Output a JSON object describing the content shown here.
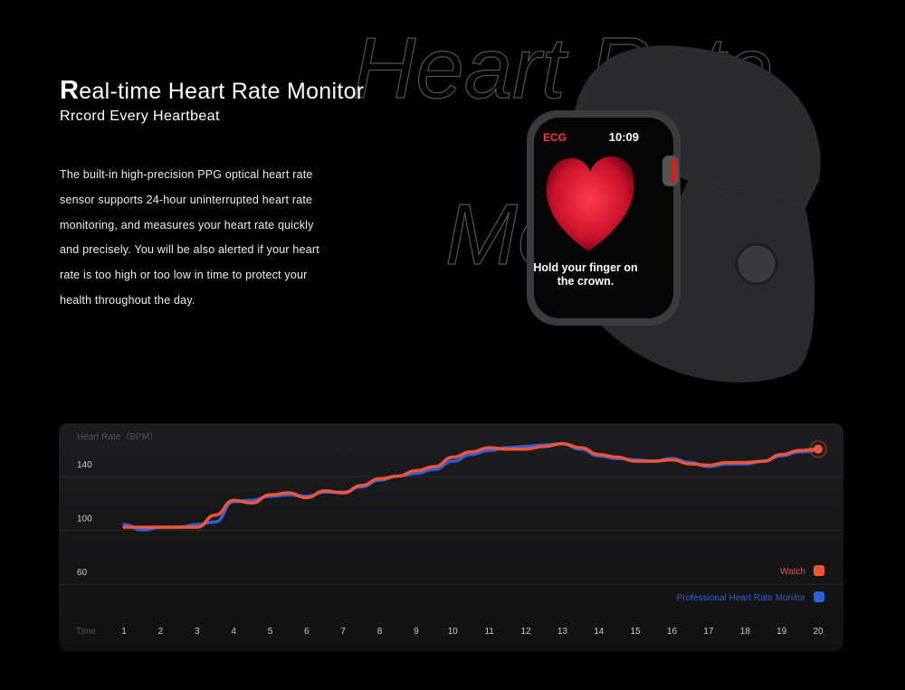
{
  "header": {
    "title": "Real-time Heart Rate Monitor",
    "subtitle": "Rrcord Every Heartbeat",
    "background_title": [
      "Heart Rate",
      "Monitor"
    ],
    "body_lines": [
      "The built-in high-precision PPG optical heart rate",
      "sensor supports 24-hour uninterrupted heart rate",
      "monitoring, and measures your heart rate quickly",
      "and precisely. You will be also alerted if your heart",
      "rate is too high or too low in time to protect your",
      "health throughout the day."
    ]
  },
  "watch": {
    "app": "ECG",
    "time": "10:09",
    "prompt": [
      "Hold your finger on",
      "the crown."
    ]
  },
  "chart_data": {
    "type": "line",
    "ylabel": "Heart Rate（BPM）",
    "xlabel": "Time",
    "x": [
      1,
      1.5,
      2,
      2.5,
      3,
      3.5,
      4,
      4.5,
      5,
      5.5,
      6,
      6.5,
      7,
      7.5,
      8,
      8.5,
      9,
      9.5,
      10,
      10.5,
      11,
      11.5,
      12,
      12.5,
      13,
      13.5,
      14,
      14.5,
      15,
      15.5,
      16,
      16.5,
      17,
      17.5,
      18,
      18.5,
      19,
      19.5,
      20
    ],
    "xlim": [
      1,
      20
    ],
    "xticks": [
      1,
      2,
      3,
      4,
      5,
      6,
      7,
      8,
      9,
      10,
      11,
      12,
      13,
      14,
      15,
      16,
      17,
      18,
      19,
      20
    ],
    "ylim": [
      20,
      170
    ],
    "yticks": [
      60,
      100,
      140
    ],
    "grid": true,
    "legend": "lower right",
    "series": [
      {
        "name": "Professional Heart Rate Monitor",
        "color": "#2f5fd8",
        "values": [
          95,
          91,
          93,
          93,
          95,
          97,
          112,
          113,
          116,
          117,
          116,
          119,
          119,
          123,
          128,
          131,
          133,
          136,
          142,
          147,
          150,
          152,
          153,
          154,
          155,
          151,
          146,
          144,
          143,
          142,
          144,
          141,
          138,
          140,
          140,
          142,
          146,
          149,
          150
        ]
      },
      {
        "name": "Watch",
        "color": "#f0553a",
        "values": [
          93,
          93,
          93,
          93,
          93,
          102,
          113,
          111,
          117,
          118.5,
          115,
          120,
          118.5,
          124,
          129,
          131,
          135,
          138,
          145,
          149,
          152,
          151,
          151,
          153,
          155,
          152,
          147,
          145,
          142,
          142,
          143,
          140,
          139,
          141,
          141,
          142,
          147,
          150,
          151
        ]
      }
    ]
  }
}
